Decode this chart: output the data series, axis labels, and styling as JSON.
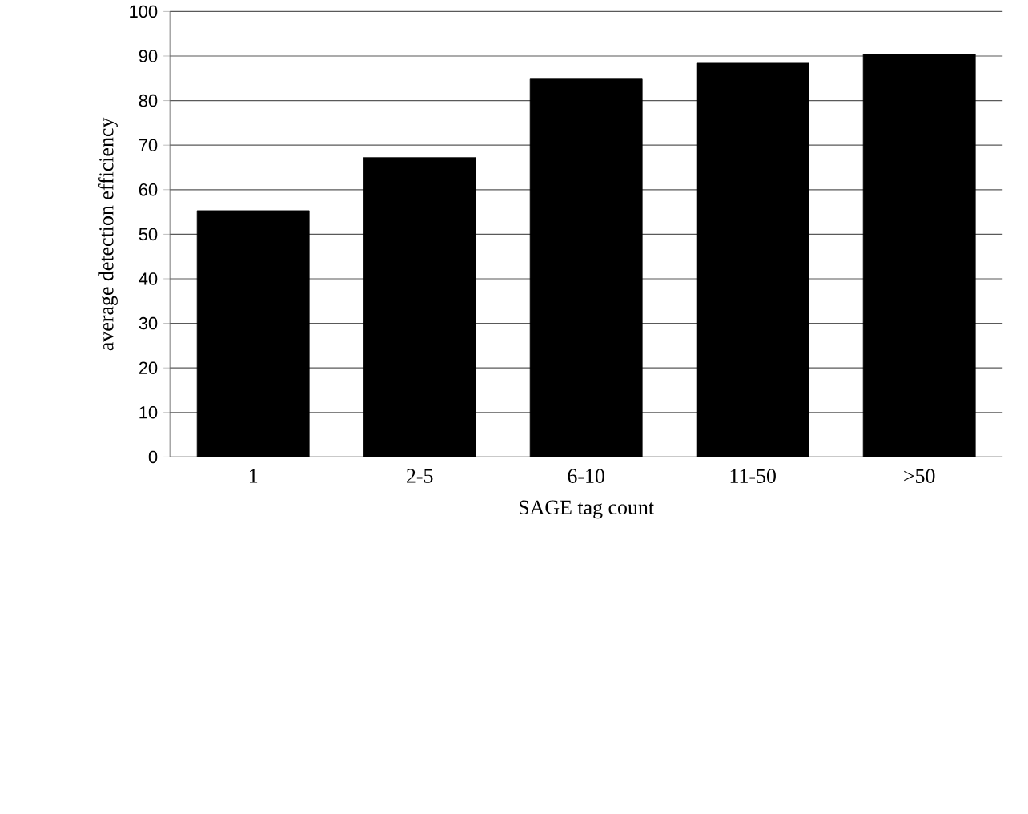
{
  "chart_data": {
    "type": "bar",
    "xlabel": "SAGE tag count",
    "ylabel": "average detection efficiency",
    "categories": [
      "1",
      "2-5",
      "6-10",
      "11-50",
      ">50"
    ],
    "values": [
      55.3,
      67.2,
      85,
      88.4,
      90.4
    ],
    "color": "#000000",
    "ylim": [
      0,
      100
    ],
    "yticks": [
      0,
      10,
      20,
      30,
      40,
      50,
      60,
      70,
      80,
      90,
      100
    ],
    "grid": "y"
  }
}
